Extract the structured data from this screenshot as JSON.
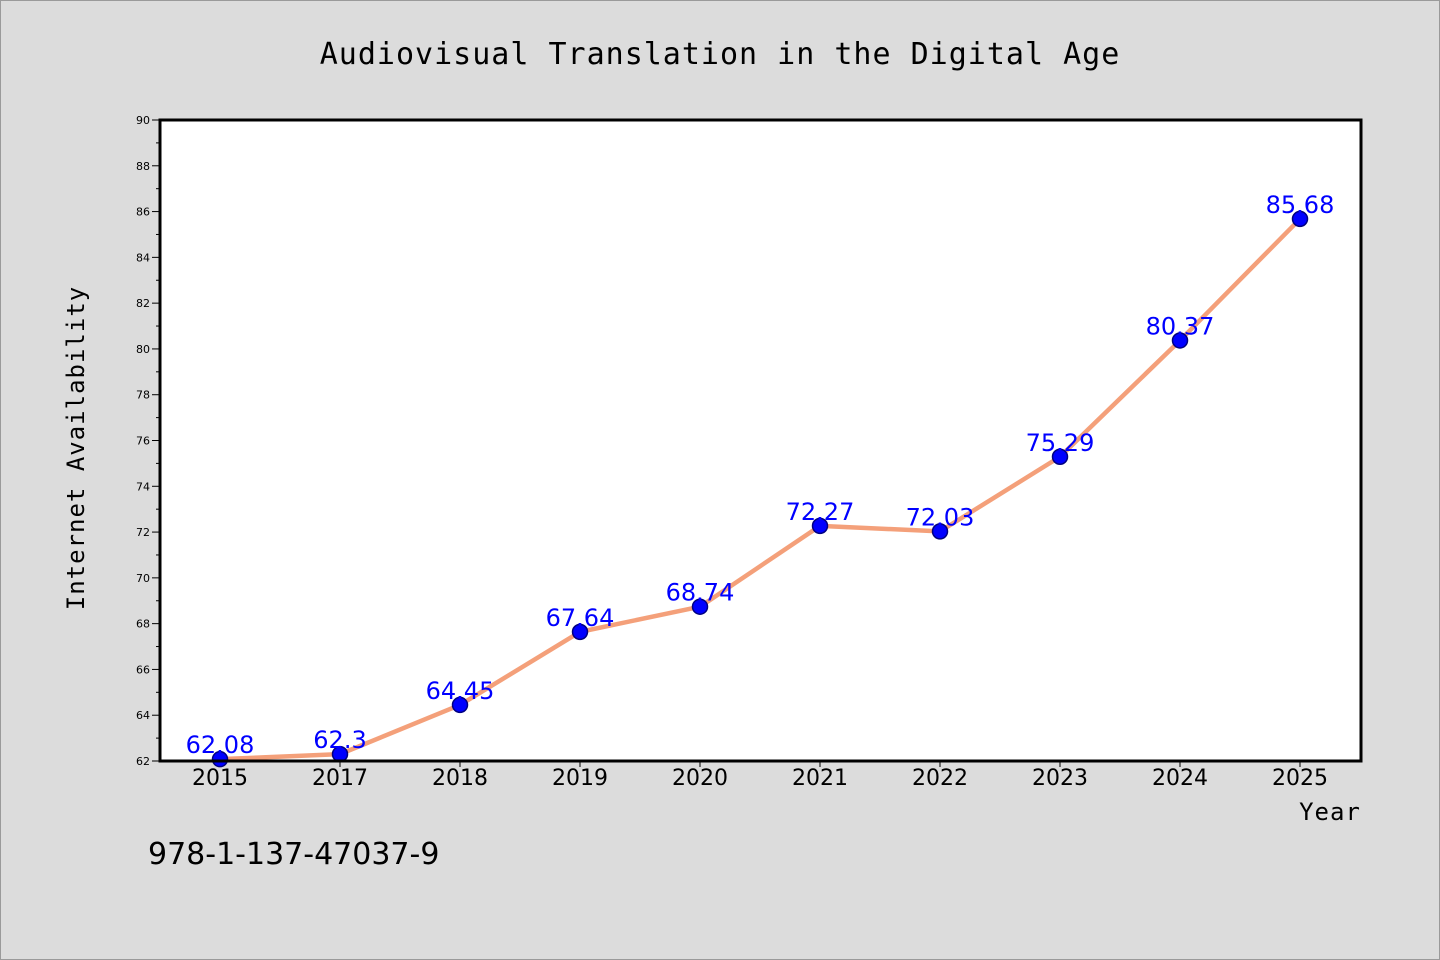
{
  "chart_data": {
    "type": "line",
    "title": "Audiovisual Translation in the Digital Age",
    "xlabel": "Year",
    "ylabel": "Internet Availability",
    "categories": [
      "2015",
      "2017",
      "2018",
      "2019",
      "2020",
      "2021",
      "2022",
      "2023",
      "2024",
      "2025"
    ],
    "series": [
      {
        "values": [
          62.08,
          62.3,
          64.45,
          67.64,
          68.74,
          72.27,
          72.03,
          75.29,
          80.37,
          85.68
        ],
        "labels": [
          "62.08",
          "62.3",
          "64.45",
          "67.64",
          "68.74",
          "72.27",
          "72.03",
          "75.29",
          "80.37",
          "85.68"
        ]
      }
    ],
    "ylim": [
      62,
      90
    ],
    "yticks": [
      "62",
      "64",
      "66",
      "68",
      "70",
      "72",
      "74",
      "76",
      "78",
      "80",
      "82",
      "84",
      "86",
      "88",
      "90"
    ],
    "grid": false,
    "legend": "none",
    "colors": {
      "line": "#f4a07a",
      "marker": "#0000ff",
      "marker_edge": "#000080",
      "label": "#0000ff",
      "background": "#dcdcdc",
      "plot_background": "#ffffff"
    }
  },
  "footer": {
    "isbn": "978-1-137-47037-9"
  }
}
